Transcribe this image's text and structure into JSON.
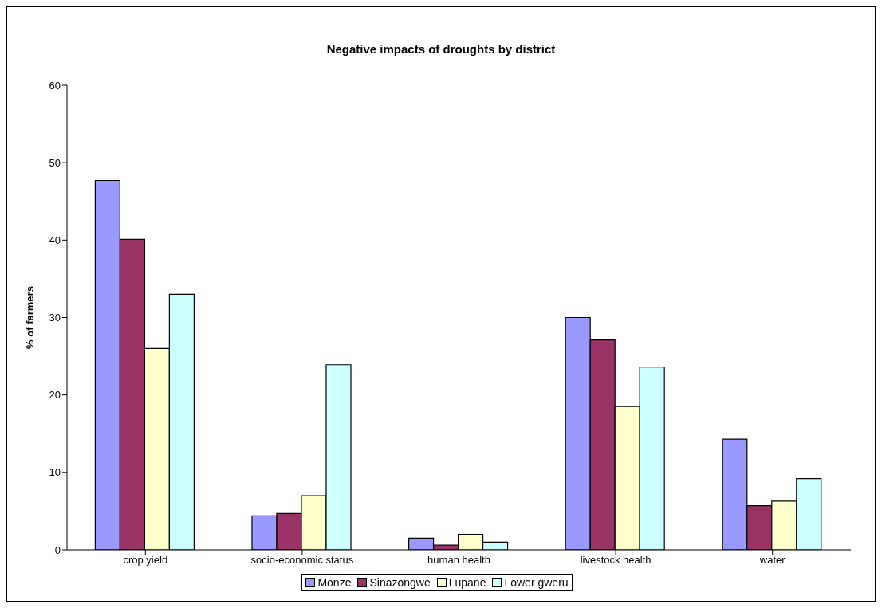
{
  "chart_data": {
    "type": "bar",
    "title": "Negative impacts of droughts by district",
    "ylabel": "% of farmers",
    "categories": [
      "crop yield",
      "socio-economic status",
      "human health",
      "livestock health",
      "water"
    ],
    "series": [
      {
        "name": "Monze",
        "color": "#9999ff",
        "values": [
          47.7,
          4.4,
          1.5,
          30,
          14.3
        ]
      },
      {
        "name": "Sinazongwe",
        "color": "#993366",
        "values": [
          40.1,
          4.7,
          0.6,
          27.1,
          5.7
        ]
      },
      {
        "name": "Lupane",
        "color": "#ffffcc",
        "values": [
          26,
          7,
          2,
          18.5,
          6.3
        ]
      },
      {
        "name": "Lower gweru",
        "color": "#ccffff",
        "values": [
          33,
          23.9,
          1,
          23.6,
          9.2
        ]
      }
    ],
    "ylim": [
      0,
      60
    ],
    "yticks": [
      0,
      10,
      20,
      30,
      40,
      50,
      60
    ],
    "grid": false,
    "legend": "bottom"
  }
}
